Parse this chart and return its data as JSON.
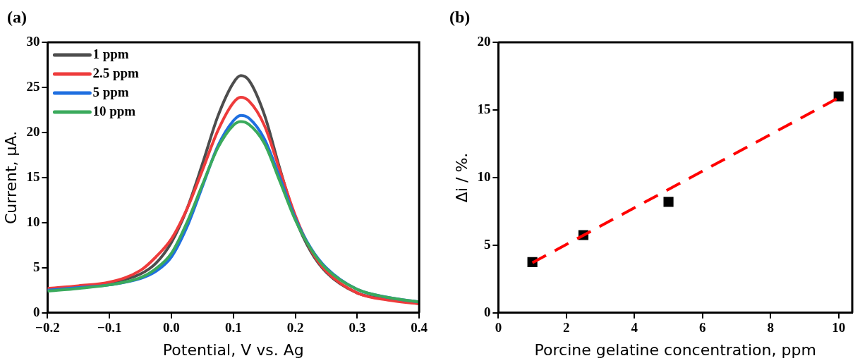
{
  "chart_data": [
    {
      "type": "line",
      "title": "(a)",
      "xlabel": "Potential, V vs. Ag",
      "ylabel": "Current, µA.",
      "xlim": [
        -0.2,
        0.4
      ],
      "xticks": [
        {
          "value": -0.2,
          "label": "−0.2"
        },
        {
          "value": -0.1,
          "label": "−0.1"
        },
        {
          "value": 0,
          "label": "0.0"
        },
        0.1,
        0.2,
        0.3,
        0.4
      ],
      "ylim": [
        0,
        30
      ],
      "yticks": [
        0,
        5,
        10,
        15,
        20,
        25,
        30
      ],
      "grid": false,
      "legend": "top left",
      "marker": "none",
      "line_style": "solid",
      "x": [
        -0.2,
        -0.15,
        -0.1,
        -0.05,
        -0.025,
        0,
        0.025,
        0.05,
        0.075,
        0.1,
        0.112,
        0.125,
        0.15,
        0.175,
        0.2,
        0.225,
        0.25,
        0.3,
        0.35,
        0.4
      ],
      "series": [
        {
          "name": "1 ppm",
          "color": "#4d4d4d",
          "values": [
            2.6,
            2.9,
            3.3,
            4.3,
            5.5,
            7.8,
            11.5,
            16.5,
            21.8,
            25.5,
            26.3,
            25.8,
            22,
            16,
            10.5,
            6.8,
            4.5,
            2.2,
            1.5,
            1.1
          ]
        },
        {
          "name": "2.5 ppm",
          "color": "#ee3b3b",
          "values": [
            2.7,
            3.0,
            3.4,
            4.7,
            6.2,
            8.2,
            11.5,
            15.8,
            20.2,
            23.3,
            23.9,
            23.5,
            20.8,
            15.8,
            10.8,
            7,
            4.6,
            2.2,
            1.4,
            1.0
          ]
        },
        {
          "name": "5 ppm",
          "color": "#1f6fe0",
          "values": [
            2.5,
            2.8,
            3.1,
            3.8,
            4.6,
            6.2,
            9.5,
            14,
            18.5,
            21.3,
            21.9,
            21.6,
            19.3,
            15,
            10.5,
            7.2,
            5,
            2.6,
            1.7,
            1.2
          ]
        },
        {
          "name": "10 ppm",
          "color": "#3aaa5c",
          "values": [
            2.4,
            2.7,
            3.1,
            3.9,
            4.9,
            6.6,
            10,
            14.2,
            18.3,
            20.8,
            21.2,
            20.9,
            18.8,
            14.6,
            10.3,
            7.1,
            4.9,
            2.6,
            1.7,
            1.2
          ]
        }
      ]
    },
    {
      "type": "scatter",
      "title": "(b)",
      "xlabel": "Porcine gelatine concentration, ppm",
      "ylabel": "Δi / %.",
      "xlim": [
        0,
        10.4
      ],
      "xticks": [
        0,
        2,
        4,
        6,
        8,
        10
      ],
      "ylim": [
        0,
        20
      ],
      "yticks": [
        0,
        5,
        10,
        15,
        20
      ],
      "grid": false,
      "legend": false,
      "series": [
        {
          "color": "#000000",
          "marker": "square",
          "x": [
            1,
            2.5,
            5,
            10
          ],
          "values": [
            3.75,
            5.75,
            8.2,
            16
          ]
        },
        {
          "type": "line",
          "color": "#ff0000",
          "marker": "none",
          "line_style": "dashed",
          "x": [
            1,
            10
          ],
          "values": [
            3.7,
            15.9
          ]
        }
      ]
    }
  ]
}
